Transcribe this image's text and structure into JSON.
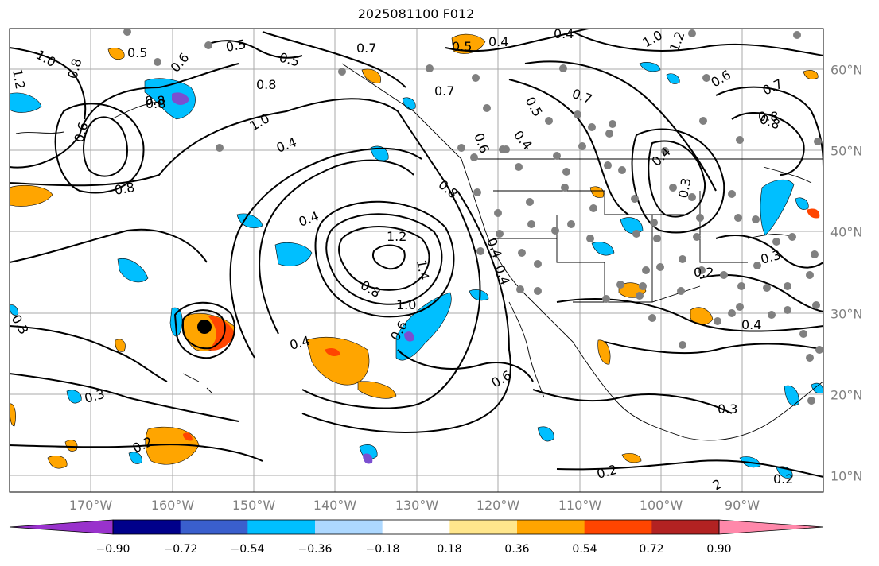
{
  "title": "2025081100 F012",
  "lon_labels": [
    "170°W",
    "160°W",
    "150°W",
    "140°W",
    "130°W",
    "120°W",
    "110°W",
    "100°W",
    "90°W"
  ],
  "lat_labels": [
    "60°N",
    "50°N",
    "40°N",
    "30°N",
    "20°N",
    "10°N"
  ],
  "contour_labels": [
    "1.0",
    "1.2",
    "0.8",
    "0.5",
    "0.5",
    "0.6",
    "0.7",
    "0.5",
    "0.4",
    "0.3",
    "1.0",
    "1.2",
    "0.8",
    "0.8",
    "0.6",
    "0.8",
    "1.0",
    "0.4",
    "0.6",
    "0.7",
    "0.8",
    "0.5",
    "0.7",
    "0.4",
    "0.5",
    "0.4",
    "0.6",
    "0.8",
    "0.7",
    "0.8",
    "0.8",
    "0.4",
    "0.3",
    "0.4",
    "1.2",
    "1.4",
    "0.8",
    "1.0",
    "0.6",
    "0.4",
    "0.2",
    "0.3",
    "0.4",
    "0.6",
    "0.4",
    "0.3",
    "0.2",
    "0.2",
    "0.3",
    "0.2",
    "2",
    "0.4"
  ],
  "colorbar": {
    "ticks": [
      "−0.90",
      "−0.72",
      "−0.54",
      "−0.36",
      "−0.18",
      "0.18",
      "0.36",
      "0.54",
      "0.72",
      "0.90"
    ],
    "colors": [
      "#9932cc",
      "#00008b",
      "#3a5fcd",
      "#00bfff",
      "#add8ff",
      "#ffffff",
      "#ffe68c",
      "#ffa500",
      "#ff4500",
      "#b22222",
      "#ff88aa"
    ]
  },
  "colors": {
    "positive_fill": "#ffa500",
    "negative_fill": "#00bfff",
    "strong_negative": "#7b4fd0",
    "strong_positive": "#ff4500",
    "contour": "#000000",
    "station": "#808080"
  }
}
